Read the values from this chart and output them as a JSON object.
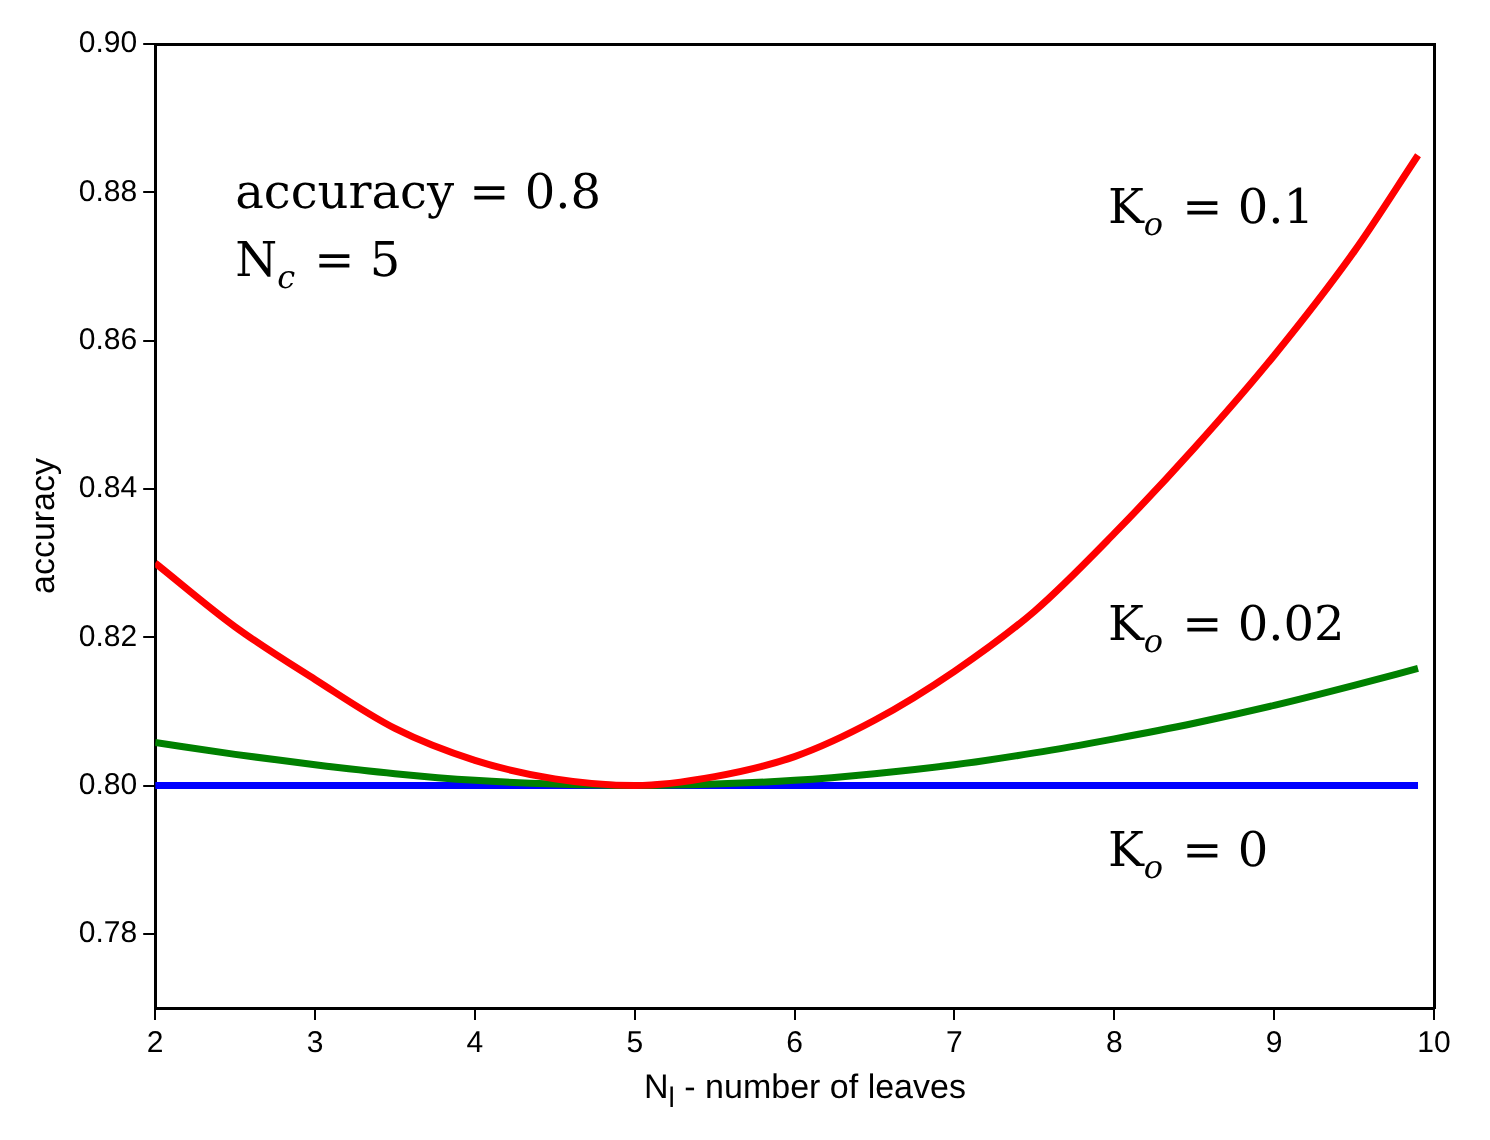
{
  "chart_data": {
    "type": "line",
    "xlabel": "N$_{l}$ - number of leaves",
    "ylabel": "accuracy",
    "x": [
      2,
      2.5,
      3,
      3.5,
      4,
      4.5,
      5,
      5.5,
      6,
      6.5,
      7,
      7.5,
      8,
      8.5,
      9,
      9.5,
      9.9
    ],
    "series": [
      {
        "name": "K$_{o}$ = 0.1",
        "color": "#ff0000",
        "values": [
          0.83,
          0.8214,
          0.8143,
          0.8077,
          0.8034,
          0.8009,
          0.8,
          0.8012,
          0.8039,
          0.8088,
          0.8154,
          0.8235,
          0.834,
          0.8455,
          0.858,
          0.872,
          0.885
        ]
      },
      {
        "name": "K$_{o}$ = 0.02",
        "color": "#008000",
        "values": [
          0.8058,
          0.8042,
          0.8028,
          0.8016,
          0.8007,
          0.8002,
          0.8,
          0.8002,
          0.8007,
          0.8016,
          0.8028,
          0.8044,
          0.8063,
          0.8084,
          0.8108,
          0.8135,
          0.8158
        ]
      },
      {
        "name": "K$_{o}$ = 0",
        "color": "#0000ff",
        "values": [
          0.8,
          0.8,
          0.8,
          0.8,
          0.8,
          0.8,
          0.8,
          0.8,
          0.8,
          0.8,
          0.8,
          0.8,
          0.8,
          0.8,
          0.8,
          0.8,
          0.8
        ]
      }
    ],
    "xlim": [
      2,
      10
    ],
    "xticks": [
      2,
      3,
      4,
      5,
      6,
      7,
      8,
      9,
      10
    ],
    "ylim": [
      0.77,
      0.9
    ],
    "yticks": [
      {
        "value": 0.78,
        "label": "0.78"
      },
      {
        "value": 0.8,
        "label": "0.80"
      },
      {
        "value": 0.82,
        "label": "0.82"
      },
      {
        "value": 0.84,
        "label": "0.84"
      },
      {
        "value": 0.86,
        "label": "0.86"
      },
      {
        "value": 0.88,
        "label": "0.88"
      },
      {
        "value": 0.9,
        "label": "0.90"
      }
    ],
    "annotations": [
      "accuracy = 0.8",
      "N$_{c}$ = 5"
    ],
    "grid": false,
    "legend": false,
    "line_style": "solid"
  }
}
